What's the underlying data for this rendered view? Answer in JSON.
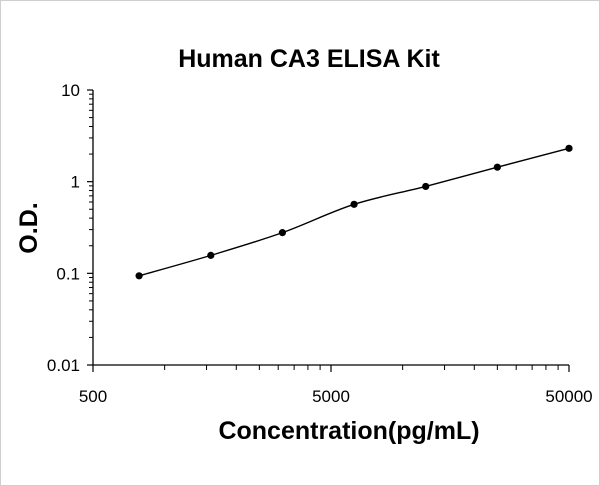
{
  "chart_data": {
    "type": "scatter",
    "title": "Human CA3 ELISA Kit",
    "xlabel": "Concentration(pg/mL)",
    "ylabel": "O.D.",
    "x_scale": "log",
    "y_scale": "log",
    "xlim": [
      500,
      50000
    ],
    "ylim": [
      0.01,
      10
    ],
    "x_ticks": [
      500,
      5000,
      50000
    ],
    "x_tick_labels": [
      "500",
      "5000",
      "50000"
    ],
    "y_ticks": [
      0.01,
      0.1,
      1,
      10
    ],
    "y_tick_labels": [
      "0.01",
      "0.1",
      "1",
      "10"
    ],
    "grid": false,
    "legend": "none",
    "trendline": true,
    "colors": {
      "points": "#000000",
      "line": "#000000",
      "axis": "#000000"
    },
    "series": [
      {
        "x": [
          781,
          1563,
          3125,
          6250,
          12500,
          25000,
          50000
        ],
        "y": [
          0.094,
          0.157,
          0.278,
          0.566,
          0.887,
          1.438,
          2.311
        ]
      }
    ]
  }
}
